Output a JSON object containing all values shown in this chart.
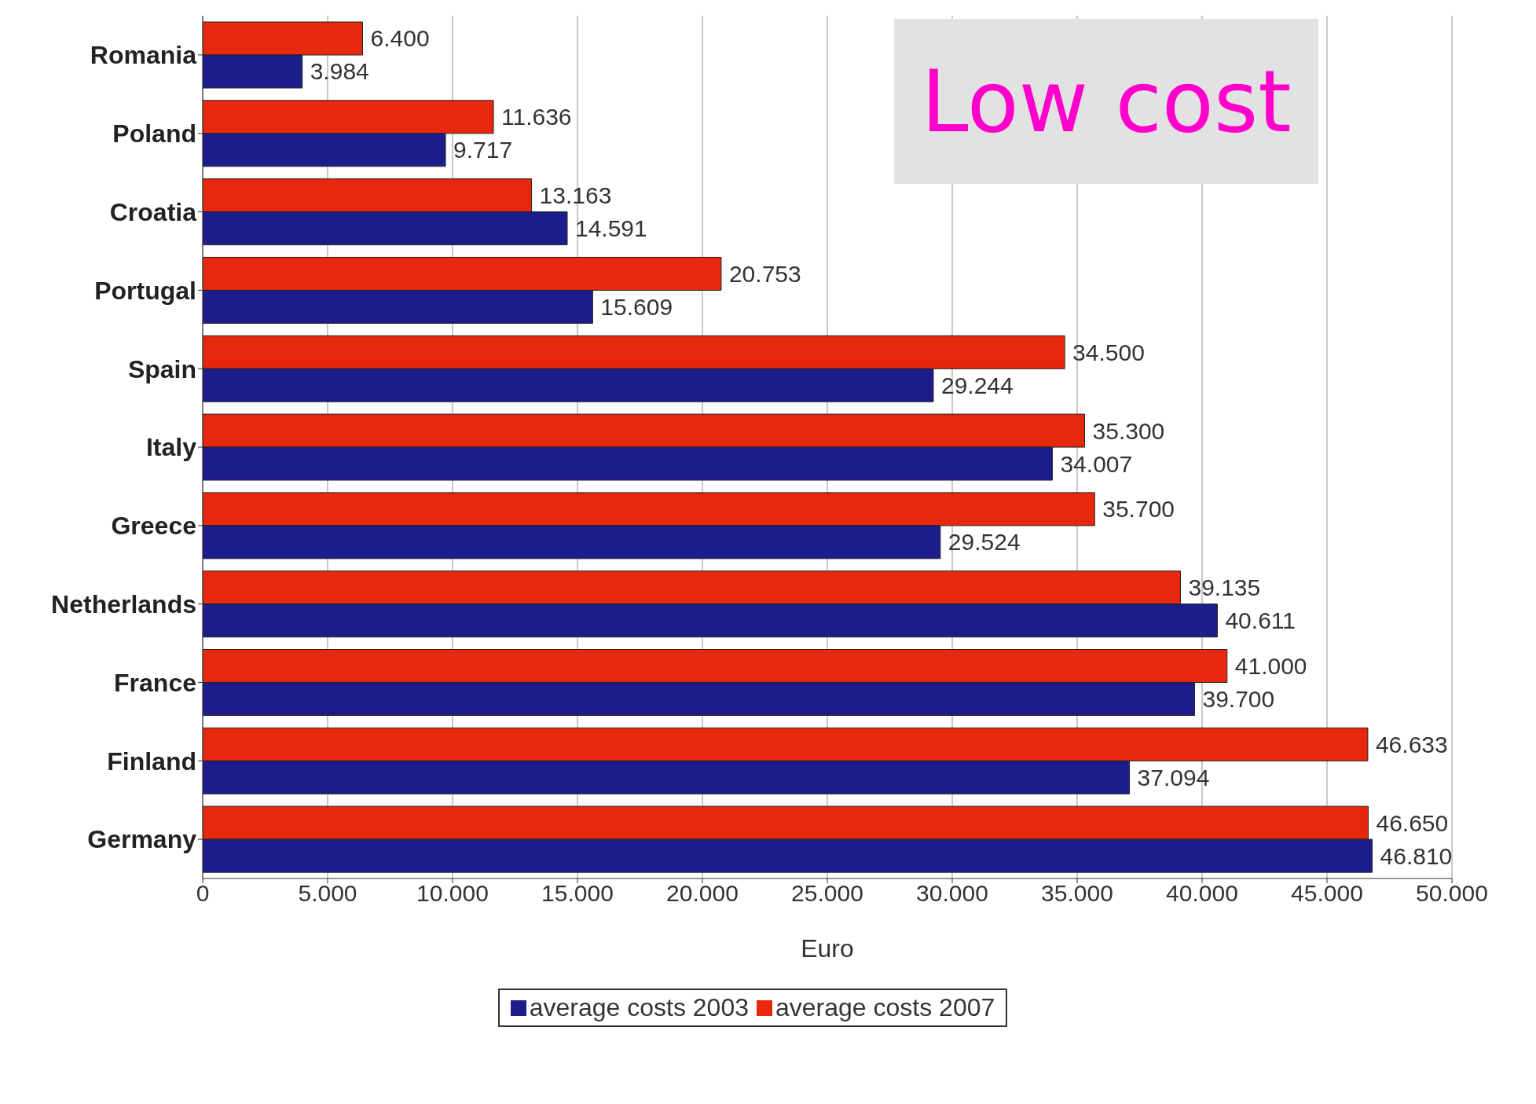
{
  "chart_data": {
    "type": "bar",
    "orientation": "horizontal",
    "xlabel": "Euro",
    "annotations": [
      "Low cost"
    ],
    "categories": [
      "Romania",
      "Poland",
      "Croatia",
      "Portugal",
      "Spain",
      "Italy",
      "Greece",
      "Netherlands",
      "France",
      "Finland",
      "Germany"
    ],
    "series": [
      {
        "name": "average costs 2003",
        "color": "#1c1c8c",
        "values": [
          3984,
          9717,
          14591,
          15609,
          29244,
          34007,
          29524,
          40611,
          39700,
          37094,
          46810
        ],
        "value_labels": [
          "3.984",
          "9.717",
          "14.591",
          "15.609",
          "29.244",
          "34.007",
          "29.524",
          "40.611",
          "39.700",
          "37.094",
          "46.810"
        ]
      },
      {
        "name": "average costs 2007",
        "color": "#e8280c",
        "values": [
          6400,
          11636,
          13163,
          20753,
          34500,
          35300,
          35700,
          39135,
          41000,
          46633,
          46650
        ],
        "value_labels": [
          "6.400",
          "11.636",
          "13.163",
          "20.753",
          "34.500",
          "35.300",
          "35.700",
          "39.135",
          "41.000",
          "46.633",
          "46.650"
        ]
      }
    ],
    "xlim": [
      0,
      50000
    ],
    "xticks": [
      {
        "value": 0,
        "label": "0"
      },
      {
        "value": 5000,
        "label": "5.000"
      },
      {
        "value": 10000,
        "label": "10.000"
      },
      {
        "value": 15000,
        "label": "15.000"
      },
      {
        "value": 20000,
        "label": "20.000"
      },
      {
        "value": 25000,
        "label": "25.000"
      },
      {
        "value": 30000,
        "label": "30.000"
      },
      {
        "value": 35000,
        "label": "35.000"
      },
      {
        "value": 40000,
        "label": "40.000"
      },
      {
        "value": 45000,
        "label": "45.000"
      },
      {
        "value": 50000,
        "label": "50.000"
      }
    ],
    "grid": "x",
    "legend": "bottom"
  }
}
